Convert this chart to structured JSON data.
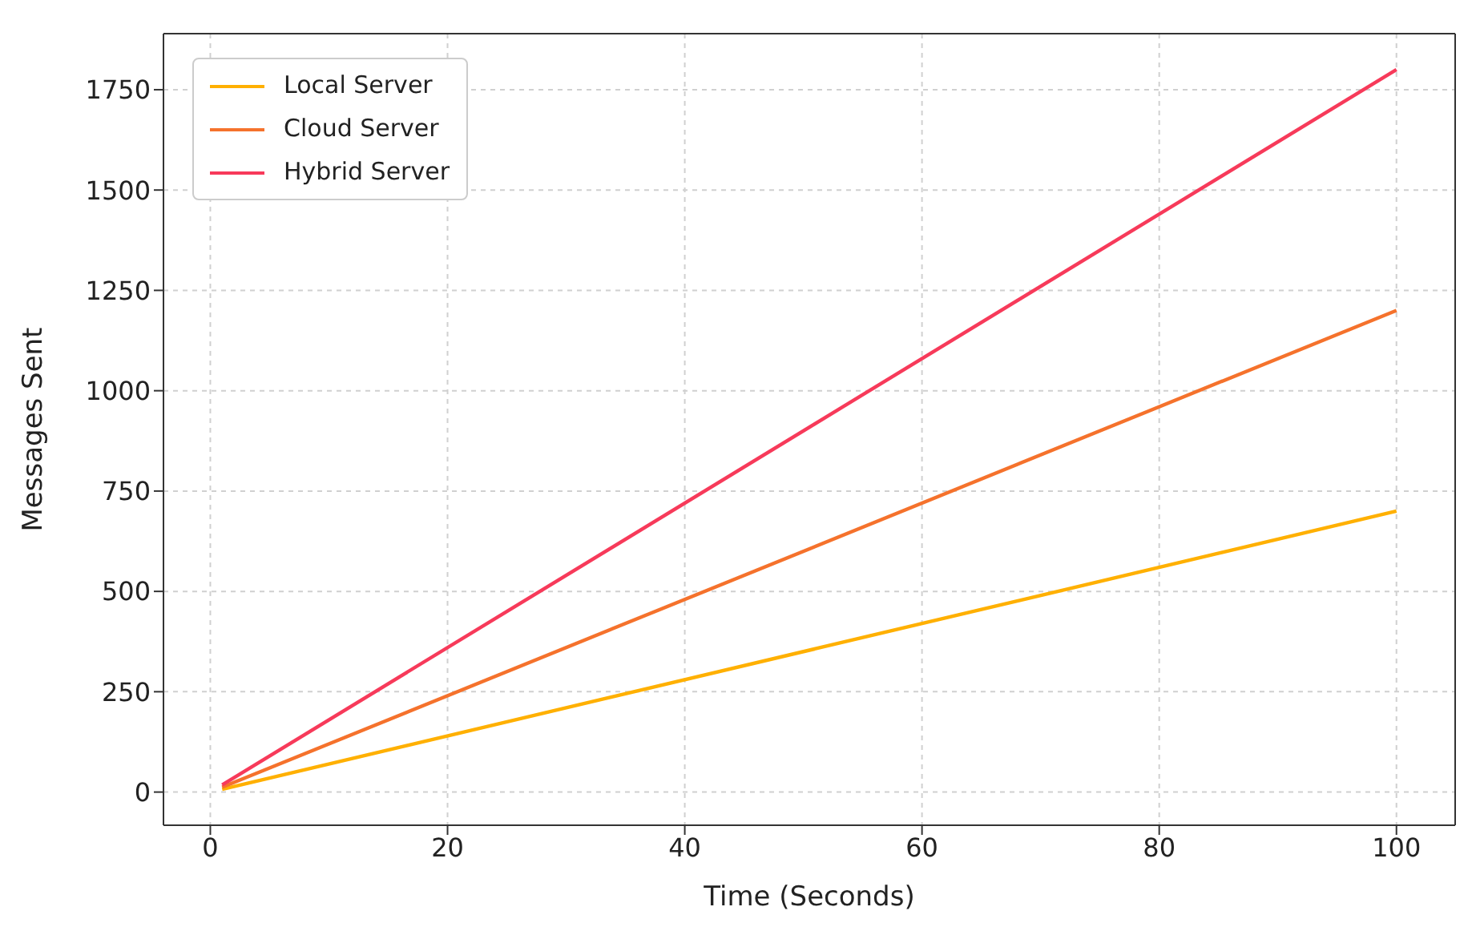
{
  "chart_data": {
    "type": "line",
    "xlabel": "Time (Seconds)",
    "ylabel": "Messages Sent",
    "x": [
      1,
      100
    ],
    "series": [
      {
        "name": "Local Server",
        "color": "#ffb000",
        "values": [
          7,
          700
        ]
      },
      {
        "name": "Cloud Server",
        "color": "#f5722c",
        "values": [
          12,
          1200
        ]
      },
      {
        "name": "Hybrid Server",
        "color": "#f73a5a",
        "values": [
          18,
          1800
        ]
      }
    ],
    "xlim": [
      -3.95,
      104.95
    ],
    "xticks": [
      0,
      20,
      40,
      60,
      80,
      100
    ],
    "ylim": [
      -82.65,
      1889.65
    ],
    "yticks": [
      0,
      250,
      500,
      750,
      1000,
      1250,
      1500,
      1750
    ],
    "grid": true,
    "legend": "top left",
    "marker": "none",
    "line_style": "solid"
  }
}
